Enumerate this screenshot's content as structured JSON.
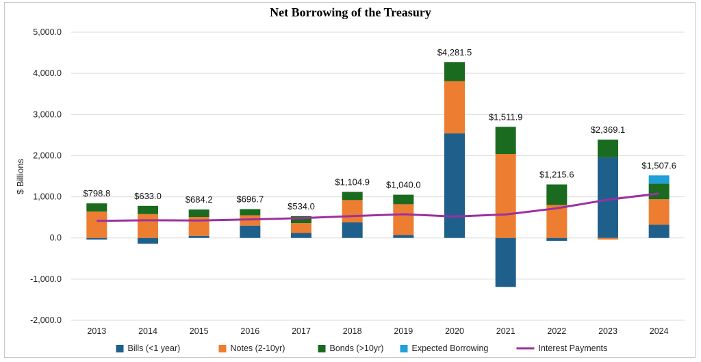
{
  "chart_data": {
    "type": "bar",
    "title": "Net Borrowing of the Treasury",
    "ylabel": "$ Billions",
    "xlabel": "",
    "ylim": [
      -2000,
      5000
    ],
    "y_ticks": [
      "-2,000.0",
      "-1,000.0",
      "0.0",
      "1,000.0",
      "2,000.0",
      "3,000.0",
      "4,000.0",
      "5,000.0"
    ],
    "y_tick_values": [
      -2000,
      -1000,
      0,
      1000,
      2000,
      3000,
      4000,
      5000
    ],
    "grid": true,
    "stacked": true,
    "legend_position": "bottom",
    "categories": [
      "2013",
      "2014",
      "2015",
      "2016",
      "2017",
      "2018",
      "2019",
      "2020",
      "2021",
      "2022",
      "2023",
      "2024"
    ],
    "series": [
      {
        "name": "Bills (<1 year)",
        "kind": "bar",
        "color": "#1f5f8b",
        "values": [
          -40,
          -140,
          50,
          300,
          120,
          380,
          70,
          2540,
          -1190,
          -70,
          1960,
          320
        ]
      },
      {
        "name": "Notes (2-10yr)",
        "kind": "bar",
        "color": "#ed7d31",
        "values": [
          640,
          580,
          460,
          250,
          240,
          540,
          750,
          1270,
          2040,
          800,
          -40,
          620
        ]
      },
      {
        "name": "Bonds (>10yr)",
        "kind": "bar",
        "color": "#1a6b1f",
        "values": [
          200,
          200,
          180,
          150,
          170,
          200,
          230,
          460,
          660,
          500,
          430,
          380
        ]
      },
      {
        "name": "Expected Borrowing",
        "kind": "bar",
        "color": "#1fa0d8",
        "values": [
          0,
          0,
          0,
          0,
          0,
          0,
          0,
          0,
          0,
          0,
          0,
          200
        ]
      },
      {
        "name": "Interest Payments",
        "kind": "line",
        "color": "#9b30a0",
        "values": [
          415,
          430,
          425,
          450,
          480,
          530,
          575,
          520,
          570,
          720,
          930,
          1080
        ]
      }
    ],
    "data_labels": [
      "$798.8",
      "$633.0",
      "$684.2",
      "$696.7",
      "$534.0",
      "$1,104.9",
      "$1,040.0",
      "$4,281.5",
      "$1,511.9",
      "$1,215.6",
      "$2,369.1",
      "$1,507.6"
    ]
  }
}
